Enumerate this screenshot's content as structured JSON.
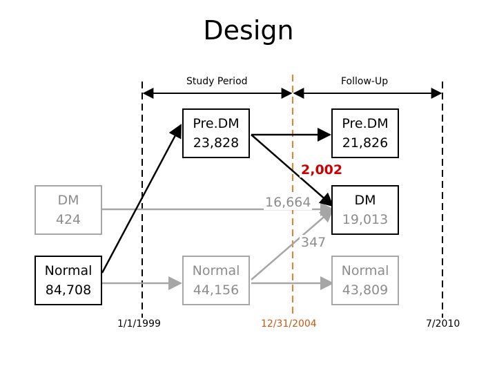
{
  "title": "Design",
  "headers": {
    "study_period": "Study Period",
    "follow_up": "Follow-Up"
  },
  "dates": {
    "start": "1/1/1999",
    "mid": "12/31/2004",
    "end": "7/2010"
  },
  "boxes": {
    "predm_1": [
      "Pre.DM",
      "23,828"
    ],
    "predm_2": [
      "Pre.DM",
      "21,826"
    ],
    "dm_base": [
      "DM",
      "424"
    ],
    "dm_follow": [
      "DM",
      "19,013"
    ],
    "normal_base": [
      "Normal",
      "84,708"
    ],
    "normal_1": [
      "Normal",
      "44,156"
    ],
    "normal_2": [
      "Normal",
      "43,809"
    ]
  },
  "flows": {
    "predm_to_dm": "2,002",
    "dm_to_dm": "16,664",
    "normal_to_dm": "347"
  },
  "colors": {
    "highlight": "#cc0000",
    "timeline_mid": "#ed7d31",
    "gray": "#a6a6a6"
  }
}
